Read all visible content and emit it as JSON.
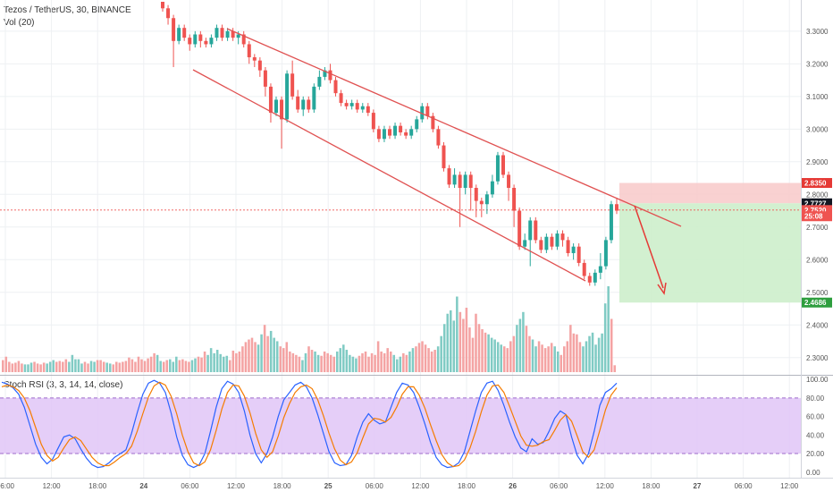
{
  "header": {
    "symbol_line": "Tezos / TetherUS, 30, BINANCE",
    "volume_line": "Vol (20)",
    "stoch_line": "Stoch RSI (3, 3, 14, 14, close)"
  },
  "colors": {
    "up": "#26a69a",
    "down": "#ef5350",
    "up_volume": "#80cbc4",
    "down_volume": "#f4a3a3",
    "channel": "#e05252",
    "stop_zone": "#f8c9c9",
    "target_zone": "#cdeecb",
    "stoch_k": "#2962ff",
    "stoch_d": "#f57c00",
    "stoch_band": "#e1c6f7"
  },
  "chart_data": [
    {
      "type": "candlestick",
      "name": "price",
      "y_ticks": [
        "3.3000",
        "3.2000",
        "3.1000",
        "3.0000",
        "2.9000",
        "2.8000",
        "2.7000",
        "2.6000",
        "2.5000",
        "2.4000",
        "2.3000"
      ],
      "ylim": [
        2.25,
        3.39
      ],
      "x_ticks": [
        "06:00",
        "12:00",
        "18:00",
        "24",
        "06:00",
        "12:00",
        "18:00",
        "25",
        "06:00",
        "12:00",
        "18:00",
        "26",
        "06:00",
        "12:00",
        "18:00",
        "27",
        "06:00",
        "12:00"
      ],
      "price_labels": [
        {
          "value": 2.835,
          "text": "2.8350",
          "color": "#e53935"
        },
        {
          "value": 2.7727,
          "text": "2.7727",
          "color": "#131722"
        },
        {
          "value": 2.752,
          "text": "2.7520",
          "color": "#ef5350"
        },
        {
          "value": 2.733,
          "text": "25:08",
          "color": "#ef5350"
        },
        {
          "value": 2.4686,
          "text": "2.4686",
          "color": "#2e9e3e"
        }
      ],
      "last_price": 2.752,
      "candles": [
        [
          3.39,
          3.37,
          3.39,
          3.36
        ],
        [
          3.37,
          3.34,
          3.38,
          3.32
        ],
        [
          3.34,
          3.27,
          3.35,
          3.19
        ],
        [
          3.27,
          3.31,
          3.32,
          3.26
        ],
        [
          3.31,
          3.28,
          3.32,
          3.27
        ],
        [
          3.28,
          3.26,
          3.29,
          3.24
        ],
        [
          3.26,
          3.29,
          3.3,
          3.25
        ],
        [
          3.29,
          3.27,
          3.3,
          3.25
        ],
        [
          3.27,
          3.26,
          3.28,
          3.25
        ],
        [
          3.26,
          3.28,
          3.29,
          3.25
        ],
        [
          3.28,
          3.31,
          3.32,
          3.27
        ],
        [
          3.31,
          3.28,
          3.32,
          3.27
        ],
        [
          3.28,
          3.3,
          3.31,
          3.27
        ],
        [
          3.3,
          3.28,
          3.31,
          3.27
        ],
        [
          3.28,
          3.29,
          3.3,
          3.26
        ],
        [
          3.29,
          3.26,
          3.3,
          3.25
        ],
        [
          3.26,
          3.22,
          3.27,
          3.2
        ],
        [
          3.22,
          3.21,
          3.23,
          3.19
        ],
        [
          3.21,
          3.18,
          3.22,
          3.16
        ],
        [
          3.18,
          3.13,
          3.19,
          3.1
        ],
        [
          3.13,
          3.05,
          3.14,
          3.02
        ],
        [
          3.05,
          3.09,
          3.1,
          3.04
        ],
        [
          3.09,
          3.03,
          3.1,
          2.94
        ],
        [
          3.03,
          3.17,
          3.18,
          3.02
        ],
        [
          3.17,
          3.1,
          3.21,
          3.09
        ],
        [
          3.1,
          3.06,
          3.12,
          3.05
        ],
        [
          3.06,
          3.09,
          3.1,
          3.04
        ],
        [
          3.09,
          3.06,
          3.1,
          3.05
        ],
        [
          3.06,
          3.13,
          3.14,
          3.05
        ],
        [
          3.13,
          3.16,
          3.18,
          3.12
        ],
        [
          3.16,
          3.18,
          3.19,
          3.15
        ],
        [
          3.18,
          3.15,
          3.2,
          3.14
        ],
        [
          3.15,
          3.11,
          3.16,
          3.1
        ],
        [
          3.11,
          3.08,
          3.12,
          3.07
        ],
        [
          3.08,
          3.07,
          3.09,
          3.06
        ],
        [
          3.07,
          3.08,
          3.09,
          3.06
        ],
        [
          3.08,
          3.06,
          3.09,
          3.05
        ],
        [
          3.06,
          3.07,
          3.08,
          3.05
        ],
        [
          3.07,
          3.05,
          3.08,
          3.04
        ],
        [
          3.05,
          3.0,
          3.06,
          2.99
        ],
        [
          3.0,
          2.97,
          3.01,
          2.96
        ],
        [
          2.97,
          3.0,
          3.01,
          2.96
        ],
        [
          3.0,
          2.98,
          3.01,
          2.97
        ],
        [
          2.98,
          3.01,
          3.02,
          2.97
        ],
        [
          3.01,
          2.99,
          3.02,
          2.98
        ],
        [
          2.99,
          2.98,
          3.0,
          2.97
        ],
        [
          2.98,
          3.0,
          3.01,
          2.97
        ],
        [
          3.0,
          3.03,
          3.04,
          2.99
        ],
        [
          3.03,
          3.07,
          3.08,
          3.02
        ],
        [
          3.07,
          3.04,
          3.08,
          3.03
        ],
        [
          3.04,
          3.0,
          3.05,
          2.99
        ],
        [
          3.0,
          2.95,
          3.01,
          2.94
        ],
        [
          2.95,
          2.88,
          2.96,
          2.87
        ],
        [
          2.88,
          2.83,
          2.89,
          2.82
        ],
        [
          2.83,
          2.86,
          2.88,
          2.82
        ],
        [
          2.86,
          2.82,
          2.87,
          2.7
        ],
        [
          2.82,
          2.86,
          2.87,
          2.8
        ],
        [
          2.86,
          2.82,
          2.87,
          2.75
        ],
        [
          2.82,
          2.78,
          2.83,
          2.73
        ],
        [
          2.78,
          2.77,
          2.79,
          2.73
        ],
        [
          2.77,
          2.8,
          2.81,
          2.74
        ],
        [
          2.8,
          2.84,
          2.86,
          2.79
        ],
        [
          2.84,
          2.92,
          2.93,
          2.83
        ],
        [
          2.92,
          2.86,
          2.93,
          2.85
        ],
        [
          2.86,
          2.82,
          2.87,
          2.78
        ],
        [
          2.82,
          2.75,
          2.83,
          2.7
        ],
        [
          2.75,
          2.64,
          2.76,
          2.63
        ],
        [
          2.64,
          2.66,
          2.68,
          2.63
        ],
        [
          2.66,
          2.72,
          2.73,
          2.58
        ],
        [
          2.72,
          2.66,
          2.73,
          2.65
        ],
        [
          2.66,
          2.63,
          2.67,
          2.62
        ],
        [
          2.63,
          2.67,
          2.68,
          2.62
        ],
        [
          2.67,
          2.64,
          2.68,
          2.63
        ],
        [
          2.64,
          2.68,
          2.69,
          2.63
        ],
        [
          2.68,
          2.66,
          2.69,
          2.64
        ],
        [
          2.66,
          2.62,
          2.67,
          2.61
        ],
        [
          2.62,
          2.64,
          2.65,
          2.6
        ],
        [
          2.64,
          2.59,
          2.65,
          2.58
        ],
        [
          2.59,
          2.55,
          2.6,
          2.54
        ],
        [
          2.55,
          2.53,
          2.56,
          2.52
        ],
        [
          2.53,
          2.56,
          2.57,
          2.52
        ],
        [
          2.56,
          2.58,
          2.62,
          2.54
        ],
        [
          2.58,
          2.66,
          2.67,
          2.57
        ],
        [
          2.66,
          2.77,
          2.78,
          2.65
        ],
        [
          2.77,
          2.75,
          2.79,
          2.74
        ]
      ]
    },
    {
      "type": "bar",
      "name": "volume",
      "values": [
        14,
        18,
        12,
        10,
        11,
        13,
        10,
        9,
        9,
        11,
        12,
        10,
        9,
        11,
        10,
        12,
        14,
        12,
        13,
        12,
        15,
        12,
        20,
        15,
        15,
        10,
        12,
        10,
        13,
        12,
        14,
        14,
        12,
        11,
        10,
        9,
        12,
        11,
        12,
        13,
        17,
        15,
        12,
        18,
        15,
        13,
        16,
        18,
        22,
        20,
        13,
        12,
        14,
        15,
        12,
        18,
        14,
        15,
        13,
        12,
        14,
        16,
        18,
        17,
        24,
        20,
        28,
        22,
        26,
        21,
        18,
        19,
        14,
        25,
        22,
        24,
        30,
        35,
        38,
        40,
        35,
        32,
        44,
        55,
        42,
        48,
        40,
        36,
        30,
        28,
        35,
        24,
        22,
        20,
        18,
        14,
        22,
        30,
        26,
        24,
        20,
        19,
        24,
        22,
        20,
        18,
        24,
        28,
        32,
        26,
        20,
        18,
        16,
        19,
        22,
        24,
        18,
        22,
        20,
        36,
        24,
        22,
        28,
        24,
        20,
        15,
        18,
        22,
        20,
        24,
        28,
        30,
        34,
        36,
        32,
        28,
        24,
        26,
        30,
        42,
        56,
        68,
        72,
        60,
        88,
        70,
        62,
        75,
        52,
        40,
        68,
        56,
        50,
        46,
        44,
        40,
        38,
        35,
        32,
        30,
        28,
        36,
        42,
        55,
        62,
        70,
        54,
        42,
        38,
        30,
        36,
        32,
        28,
        30,
        34,
        30,
        24,
        20,
        30,
        36,
        55,
        45,
        44,
        35,
        30,
        36,
        42,
        46,
        32,
        40,
        45,
        80,
        100,
        62,
        8
      ]
    },
    {
      "type": "line",
      "name": "stoch-rsi",
      "y_ticks": [
        "100.00",
        "80.00",
        "60.00",
        "40.00",
        "20.00",
        "0.00"
      ],
      "ylim": [
        -6,
        104
      ],
      "bands": [
        20,
        80
      ],
      "series": [
        {
          "key": "k",
          "values": [
            97,
            95,
            91,
            84,
            70,
            50,
            30,
            16,
            9,
            14,
            26,
            38,
            40,
            36,
            25,
            15,
            8,
            5,
            6,
            10,
            16,
            20,
            24,
            42,
            64,
            84,
            96,
            99,
            96,
            86,
            64,
            38,
            18,
            8,
            5,
            8,
            20,
            44,
            70,
            90,
            98,
            95,
            86,
            66,
            40,
            20,
            10,
            20,
            38,
            60,
            78,
            86,
            94,
            97,
            92,
            80,
            62,
            42,
            22,
            10,
            7,
            8,
            18,
            38,
            54,
            63,
            56,
            52,
            54,
            70,
            86,
            96,
            94,
            86,
            70,
            52,
            32,
            16,
            8,
            5,
            6,
            10,
            22,
            44,
            66,
            86,
            96,
            98,
            88,
            72,
            54,
            38,
            26,
            22,
            36,
            30,
            32,
            44,
            58,
            66,
            62,
            38,
            18,
            9,
            20,
            44,
            72,
            86,
            90,
            96
          ]
        },
        {
          "key": "d",
          "values": [
            92,
            94,
            92,
            88,
            80,
            66,
            48,
            30,
            18,
            12,
            16,
            26,
            35,
            38,
            34,
            25,
            16,
            10,
            7,
            7,
            11,
            16,
            20,
            28,
            44,
            63,
            81,
            93,
            97,
            94,
            82,
            63,
            40,
            22,
            10,
            7,
            11,
            24,
            45,
            68,
            86,
            94,
            93,
            82,
            64,
            42,
            24,
            16,
            22,
            39,
            59,
            74,
            86,
            92,
            94,
            90,
            78,
            61,
            42,
            25,
            13,
            8,
            11,
            21,
            37,
            52,
            58,
            57,
            54,
            59,
            70,
            84,
            92,
            92,
            83,
            69,
            51,
            34,
            19,
            10,
            6,
            7,
            13,
            26,
            44,
            65,
            83,
            93,
            94,
            86,
            71,
            55,
            39,
            29,
            28,
            29,
            33,
            35,
            45,
            56,
            62,
            55,
            39,
            22,
            16,
            24,
            45,
            67,
            83,
            91
          ]
        }
      ]
    }
  ]
}
